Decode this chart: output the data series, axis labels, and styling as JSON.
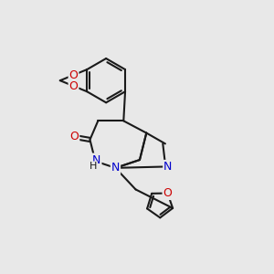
{
  "bg_color": "#e8e8e8",
  "bond_color": "#1a1a1a",
  "bond_width": 1.5,
  "N_color": "#0000cc",
  "O_color": "#cc0000",
  "C_color": "#1a1a1a",
  "figsize": [
    3.0,
    3.0
  ],
  "dpi": 100,
  "xlim": [
    0,
    10
  ],
  "ylim": [
    0,
    10
  ]
}
